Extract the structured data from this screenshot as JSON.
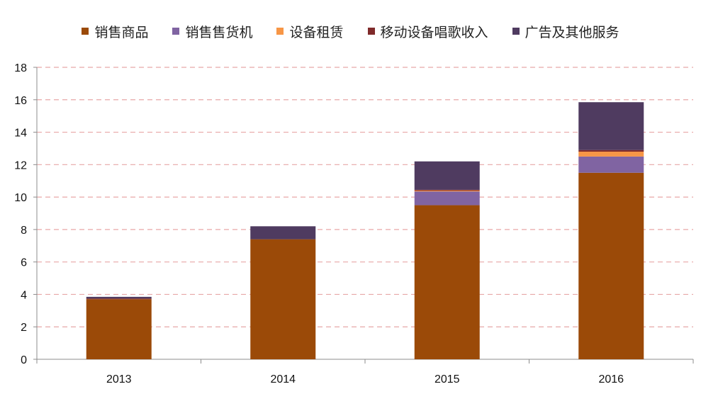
{
  "chart_data": {
    "type": "bar",
    "stacked": true,
    "categories": [
      "2013",
      "2014",
      "2015",
      "2016"
    ],
    "series": [
      {
        "name": "销售商品",
        "color": "#9B4A08",
        "values": [
          3.7,
          7.4,
          9.5,
          11.5
        ]
      },
      {
        "name": "销售售货机",
        "color": "#8064A2",
        "values": [
          0.0,
          0.0,
          0.85,
          1.0
        ]
      },
      {
        "name": "设备租赁",
        "color": "#F79646",
        "values": [
          0.0,
          0.0,
          0.05,
          0.3
        ]
      },
      {
        "name": "移动设备唱歌收入",
        "color": "#7F2A2A",
        "values": [
          0.05,
          0.0,
          0.05,
          0.1
        ]
      },
      {
        "name": "广告及其他服务",
        "color": "#4F3B60",
        "values": [
          0.1,
          0.8,
          1.75,
          2.95
        ]
      }
    ],
    "ylim": [
      0,
      18
    ],
    "yticks": [
      "0",
      "2",
      "4",
      "6",
      "8",
      "10",
      "12",
      "14",
      "16",
      "18"
    ],
    "grid": true,
    "grid_color": "#E8A7A7",
    "legend_position": "top",
    "title": "",
    "xlabel": "",
    "ylabel": ""
  }
}
